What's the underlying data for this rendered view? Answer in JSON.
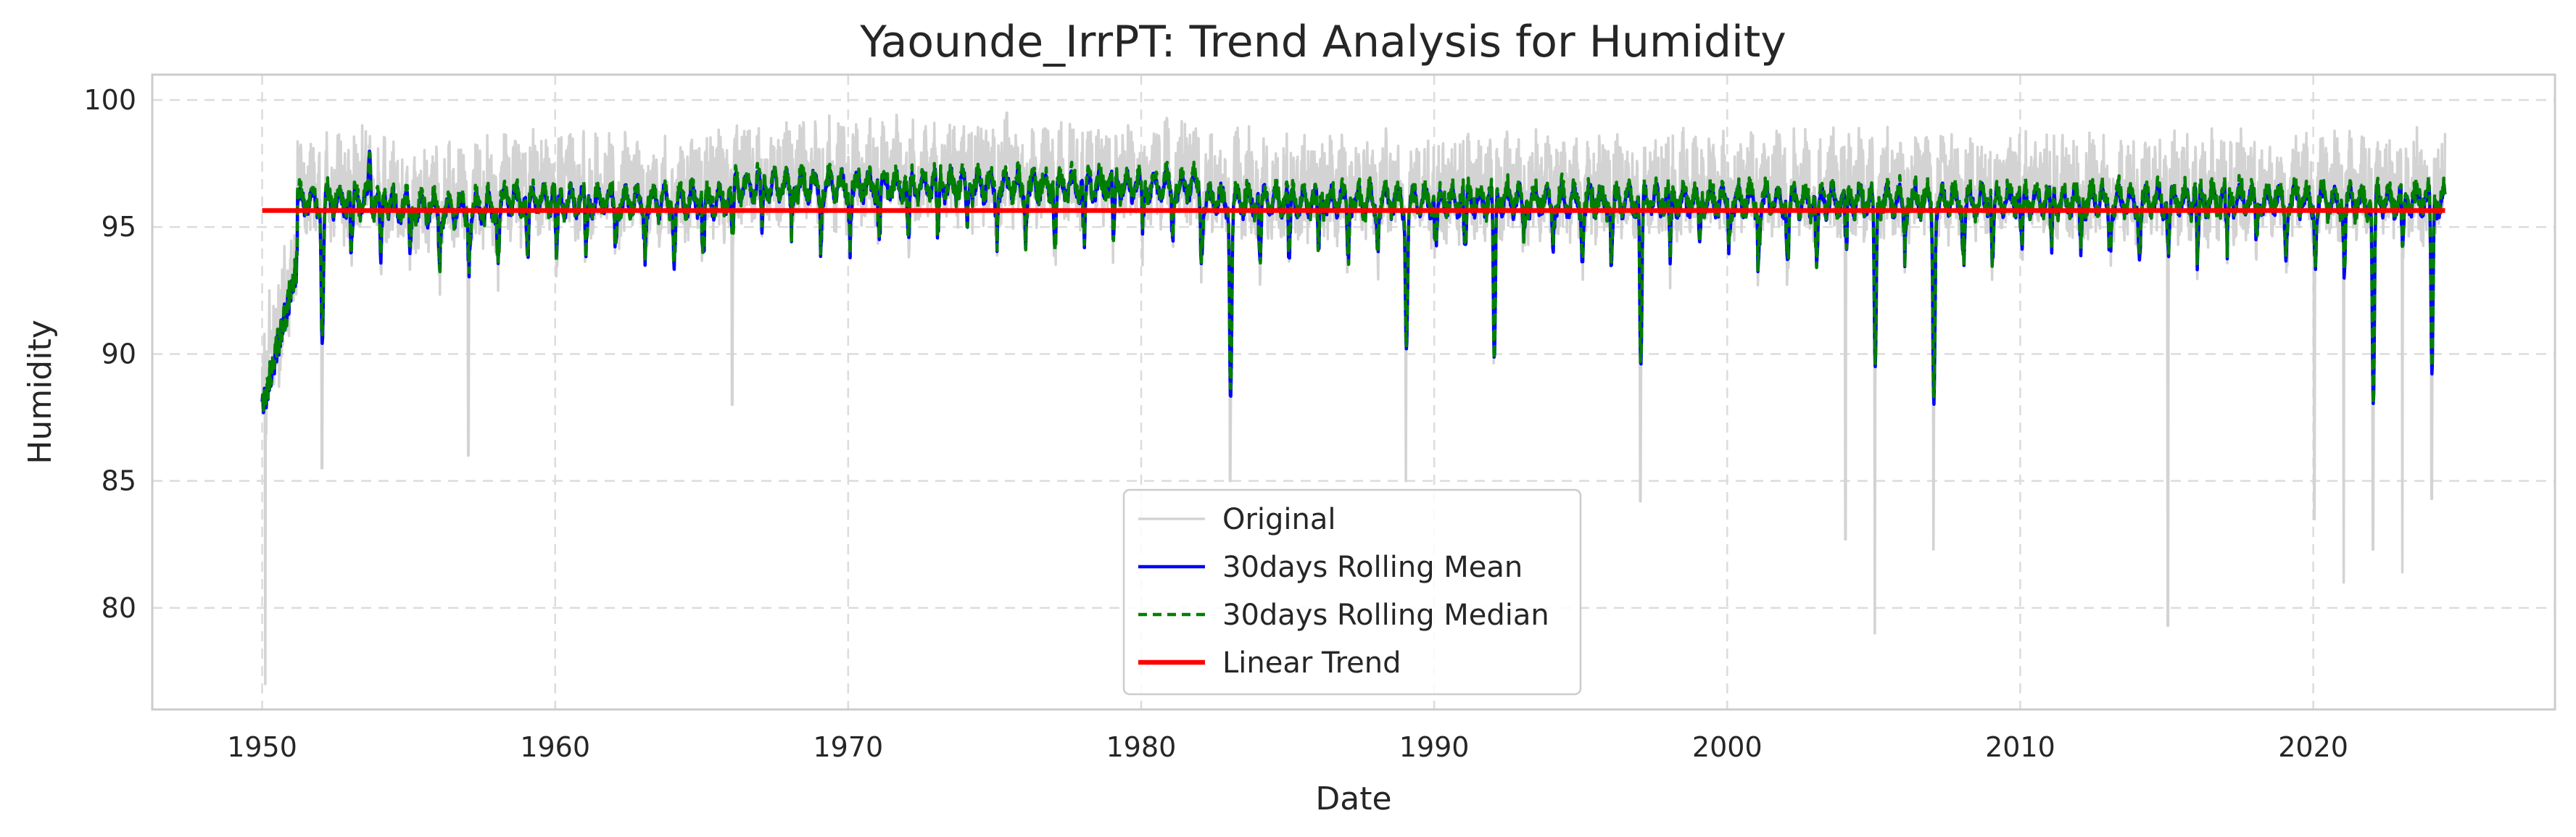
{
  "chart_data": {
    "type": "line",
    "title": "Yaounde_IrrPT: Trend Analysis for Humidity",
    "xlabel": "Date",
    "ylabel": "Humidity",
    "xlim": [
      "1946-04-01",
      "2028-04-01"
    ],
    "ylim": [
      76,
      101
    ],
    "x_ticks": [
      "1950",
      "1960",
      "1970",
      "1980",
      "1990",
      "2000",
      "2010",
      "2020"
    ],
    "y_ticks": [
      80,
      85,
      90,
      95,
      100
    ],
    "grid": true,
    "legend_position": "lower center",
    "x_range": [
      "1950-01-01",
      "2024-07-01"
    ],
    "series": [
      {
        "name": "Original",
        "color": "#d3d3d3",
        "style": "solid",
        "anchor_points": [
          {
            "x": "1950-01-01",
            "y": 89.5
          },
          {
            "x": "1950-02-10",
            "y": 77.0
          },
          {
            "x": "1950-04-01",
            "y": 92.5
          },
          {
            "x": "1951-06-01",
            "y": 97.5
          },
          {
            "x": "1952-01-15",
            "y": 85.5
          },
          {
            "x": "1953-06-01",
            "y": 99.0
          },
          {
            "x": "1957-01-15",
            "y": 86.0
          },
          {
            "x": "1966-01-15",
            "y": 88.0
          },
          {
            "x": "1975-06-01",
            "y": 99.5
          },
          {
            "x": "1983-01-15",
            "y": 85.0
          },
          {
            "x": "1989-01-15",
            "y": 85.0
          },
          {
            "x": "1997-01-15",
            "y": 84.2
          },
          {
            "x": "2004-01-15",
            "y": 82.7
          },
          {
            "x": "2005-01-15",
            "y": 79.0
          },
          {
            "x": "2007-01-15",
            "y": 82.3
          },
          {
            "x": "2015-01-15",
            "y": 79.3
          },
          {
            "x": "2020-01-15",
            "y": 83.5
          },
          {
            "x": "2021-01-15",
            "y": 81.0
          },
          {
            "x": "2022-01-15",
            "y": 82.3
          },
          {
            "x": "2023-01-15",
            "y": 81.4
          },
          {
            "x": "2024-01-15",
            "y": 84.3
          },
          {
            "x": "2024-07-01",
            "y": 98.7
          }
        ]
      },
      {
        "name": "30days Rolling Mean",
        "color": "#0000ff",
        "style": "solid",
        "anchor_points": [
          {
            "x": "1950-01-20",
            "y": 87.2
          },
          {
            "x": "1952-01-20",
            "y": 90.4
          },
          {
            "x": "1953-09-01",
            "y": 98.0
          },
          {
            "x": "1983-01-20",
            "y": 88.2
          },
          {
            "x": "1989-01-20",
            "y": 90.2
          },
          {
            "x": "1992-01-20",
            "y": 89.8
          },
          {
            "x": "1997-01-20",
            "y": 89.5
          },
          {
            "x": "2005-01-20",
            "y": 89.5
          },
          {
            "x": "2007-01-20",
            "y": 88.0
          },
          {
            "x": "2022-01-20",
            "y": 88.0
          },
          {
            "x": "2024-01-20",
            "y": 89.2
          }
        ]
      },
      {
        "name": "30days Rolling Median",
        "color": "#008000",
        "style": "dashed",
        "anchor_points": [
          {
            "x": "1950-01-20",
            "y": 88.5
          },
          {
            "x": "1953-09-01",
            "y": 98.1
          },
          {
            "x": "1983-01-20",
            "y": 88.2
          },
          {
            "x": "1997-01-20",
            "y": 89.6
          },
          {
            "x": "2007-01-20",
            "y": 88.5
          },
          {
            "x": "2022-01-20",
            "y": 88.1
          }
        ]
      },
      {
        "name": "Linear Trend",
        "color": "#ff0000",
        "style": "solid",
        "points": [
          {
            "x": "1950-01-01",
            "y": 95.65
          },
          {
            "x": "2024-07-01",
            "y": 95.65
          }
        ]
      }
    ]
  }
}
